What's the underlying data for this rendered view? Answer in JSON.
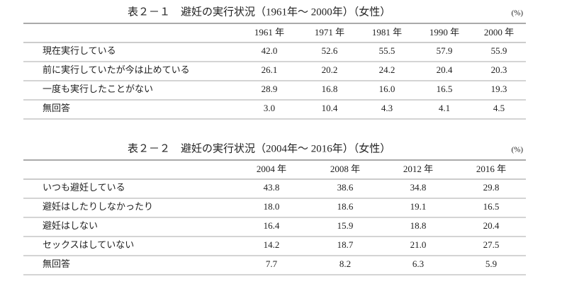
{
  "tables": [
    {
      "title": "表２－１　避妊の実行状況（1961年～ 2000年）（女性）",
      "unit": "(%)",
      "columns": [
        "1961 年",
        "1971 年",
        "1981 年",
        "1990 年",
        "2000 年"
      ],
      "rows": [
        {
          "label": "現在実行している",
          "values": [
            "42.0",
            "52.6",
            "55.5",
            "57.9",
            "55.9"
          ]
        },
        {
          "label": "前に実行していたが今は止めている",
          "values": [
            "26.1",
            "20.2",
            "24.2",
            "20.4",
            "20.3"
          ]
        },
        {
          "label": "一度も実行したことがない",
          "values": [
            "28.9",
            "16.8",
            "16.0",
            "16.5",
            "19.3"
          ]
        },
        {
          "label": "無回答",
          "values": [
            "3.0",
            "10.4",
            "4.3",
            "4.1",
            "4.5"
          ]
        }
      ]
    },
    {
      "title": "表２－２　避妊の実行状況（2004年～ 2016年）（女性）",
      "unit": "(%)",
      "columns": [
        "2004 年",
        "2008 年",
        "2012 年",
        "2016 年"
      ],
      "rows": [
        {
          "label": "いつも避妊している",
          "values": [
            "43.8",
            "38.6",
            "34.8",
            "29.8"
          ]
        },
        {
          "label": "避妊はしたりしなかったり",
          "values": [
            "18.0",
            "18.6",
            "19.1",
            "16.5"
          ]
        },
        {
          "label": "避妊はしない",
          "values": [
            "16.4",
            "15.9",
            "18.8",
            "20.4"
          ]
        },
        {
          "label": "セックスはしていない",
          "values": [
            "14.2",
            "18.7",
            "21.0",
            "27.5"
          ]
        },
        {
          "label": "無回答",
          "values": [
            "7.7",
            "8.2",
            "6.3",
            "5.9"
          ]
        }
      ]
    }
  ]
}
